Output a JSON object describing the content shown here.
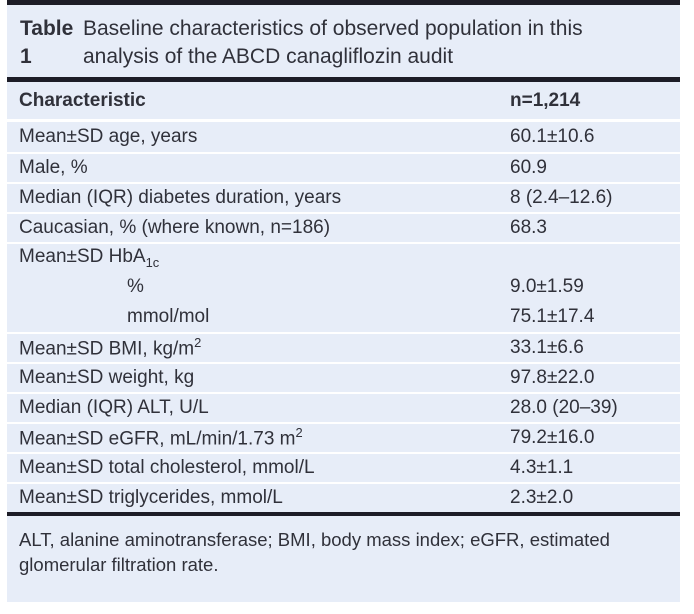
{
  "caption": {
    "label": "Table 1",
    "text": "Baseline characteristics of observed population in this analysis of the ABCD canagliflozin audit"
  },
  "table": {
    "header": {
      "characteristic": "Characteristic",
      "n": "n=1,214"
    },
    "rows": [
      {
        "label": "Mean±SD age, years",
        "sub": "",
        "sup": "",
        "value": "60.1±10.6",
        "divider": false,
        "indent": false
      },
      {
        "label": "Male, %",
        "sub": "",
        "sup": "",
        "value": "60.9",
        "divider": true,
        "indent": false
      },
      {
        "label": "Median (IQR) diabetes duration, years",
        "sub": "",
        "sup": "",
        "value": "8 (2.4–12.6)",
        "divider": true,
        "indent": false
      },
      {
        "label": "Caucasian, % (where known, n=186)",
        "sub": "",
        "sup": "",
        "value": "68.3",
        "divider": true,
        "indent": false
      },
      {
        "label": "Mean±SD HbA",
        "sub": "1c",
        "sup": "",
        "value": "",
        "divider": true,
        "indent": false
      },
      {
        "label": "%",
        "sub": "",
        "sup": "",
        "value": "9.0±1.59",
        "divider": false,
        "indent": true
      },
      {
        "label": "mmol/mol",
        "sub": "",
        "sup": "",
        "value": "75.1±17.4",
        "divider": false,
        "indent": true
      },
      {
        "label": "Mean±SD BMI, kg/m",
        "sub": "",
        "sup": "2",
        "value": "33.1±6.6",
        "divider": true,
        "indent": false
      },
      {
        "label": "Mean±SD weight, kg",
        "sub": "",
        "sup": "",
        "value": "97.8±22.0",
        "divider": true,
        "indent": false
      },
      {
        "label": "Median (IQR) ALT, U/L",
        "sub": "",
        "sup": "",
        "value": "28.0 (20–39)",
        "divider": true,
        "indent": false
      },
      {
        "label": "Mean±SD eGFR, mL/min/1.73 m",
        "sub": "",
        "sup": "2",
        "value": "79.2±16.0",
        "divider": true,
        "indent": false
      },
      {
        "label": "Mean±SD total cholesterol, mmol/L",
        "sub": "",
        "sup": "",
        "value": "4.3±1.1",
        "divider": true,
        "indent": false
      },
      {
        "label": "Mean±SD triglycerides, mmol/L",
        "sub": "",
        "sup": "",
        "value": "2.3±2.0",
        "divider": true,
        "indent": false
      }
    ]
  },
  "footnote": "ALT, alanine aminotransferase; BMI, body mass index; eGFR, estimated glomerular filtration rate.",
  "colors": {
    "panel_bg": "#e7edf8",
    "rule": "#1d1d27",
    "divider": "#ffffff",
    "text": "#30313a"
  }
}
